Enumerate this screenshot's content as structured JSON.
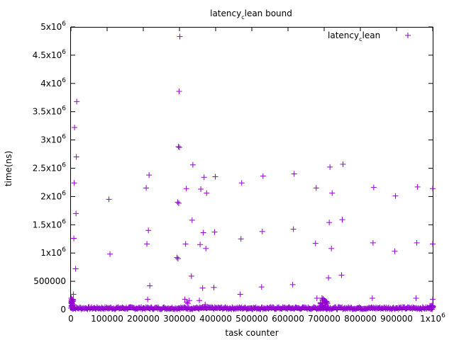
{
  "chart_data": {
    "type": "scatter",
    "title": "latency_clean bound",
    "xlabel": "task counter",
    "ylabel": "time(ns)",
    "xlim": [
      0,
      1000000
    ],
    "ylim": [
      0,
      5000000
    ],
    "legend_position": "top-right",
    "grid": false,
    "series": [
      {
        "name": "latency_clean",
        "color": "#9400d3",
        "marker": "plus",
        "points": [
          [
            1000,
            200000
          ],
          [
            2000,
            160000
          ],
          [
            3000,
            130000
          ],
          [
            4000,
            100000
          ],
          [
            5000,
            80000
          ],
          [
            7000,
            270000
          ],
          [
            8000,
            1260000
          ],
          [
            9000,
            2240000
          ],
          [
            10000,
            3220000
          ],
          [
            13000,
            720000
          ],
          [
            14000,
            1700000
          ],
          [
            15000,
            2700000
          ],
          [
            16000,
            3680000
          ],
          [
            105000,
            1950000
          ],
          [
            108000,
            980000
          ],
          [
            208000,
            2150000
          ],
          [
            210000,
            1160000
          ],
          [
            212000,
            180000
          ],
          [
            214000,
            1400000
          ],
          [
            216000,
            2380000
          ],
          [
            218000,
            420000
          ],
          [
            293000,
            920000
          ],
          [
            295000,
            1900000
          ],
          [
            297000,
            2880000
          ],
          [
            299000,
            3860000
          ],
          [
            301000,
            4830000
          ],
          [
            296000,
            900000
          ],
          [
            298000,
            1880000
          ],
          [
            300000,
            2870000
          ],
          [
            315000,
            180000
          ],
          [
            317000,
            1160000
          ],
          [
            319000,
            2140000
          ],
          [
            320000,
            130000
          ],
          [
            323000,
            110000
          ],
          [
            327000,
            160000
          ],
          [
            333000,
            590000
          ],
          [
            335000,
            1580000
          ],
          [
            337000,
            2560000
          ],
          [
            355000,
            160000
          ],
          [
            357000,
            1150000
          ],
          [
            359000,
            2130000
          ],
          [
            364000,
            380000
          ],
          [
            366000,
            1360000
          ],
          [
            368000,
            2340000
          ],
          [
            371000,
            90000
          ],
          [
            373000,
            1080000
          ],
          [
            375000,
            2060000
          ],
          [
            395000,
            390000
          ],
          [
            397000,
            1370000
          ],
          [
            399000,
            2350000
          ],
          [
            468000,
            270000
          ],
          [
            470000,
            1250000
          ],
          [
            472000,
            2240000
          ],
          [
            527000,
            400000
          ],
          [
            529000,
            1380000
          ],
          [
            531000,
            2360000
          ],
          [
            613000,
            440000
          ],
          [
            615000,
            1420000
          ],
          [
            617000,
            2400000
          ],
          [
            676000,
            1170000
          ],
          [
            678000,
            2150000
          ],
          [
            680000,
            200000
          ],
          [
            694000,
            200000
          ],
          [
            697000,
            190000
          ],
          [
            700000,
            170000
          ],
          [
            703000,
            150000
          ],
          [
            706000,
            130000
          ],
          [
            709000,
            110000
          ],
          [
            712000,
            560000
          ],
          [
            714000,
            1540000
          ],
          [
            716000,
            2520000
          ],
          [
            720000,
            1080000
          ],
          [
            722000,
            2060000
          ],
          [
            748000,
            610000
          ],
          [
            750000,
            1590000
          ],
          [
            752000,
            2570000
          ],
          [
            833000,
            200000
          ],
          [
            835000,
            1180000
          ],
          [
            837000,
            2160000
          ],
          [
            895000,
            1030000
          ],
          [
            897000,
            2010000
          ],
          [
            954000,
            200000
          ],
          [
            956000,
            1180000
          ],
          [
            958000,
            2170000
          ],
          [
            1000000,
            180000
          ],
          [
            1002000,
            1160000
          ],
          [
            1004000,
            2140000
          ]
        ]
      }
    ],
    "yticks": [
      {
        "value": 0,
        "label": "0"
      },
      {
        "value": 500000,
        "label": "500000"
      },
      {
        "value": 1000000,
        "label": "1x10^6"
      },
      {
        "value": 1500000,
        "label": "1.5x10^6"
      },
      {
        "value": 2000000,
        "label": "2x10^6"
      },
      {
        "value": 2500000,
        "label": "2.5x10^6"
      },
      {
        "value": 3000000,
        "label": "3x10^6"
      },
      {
        "value": 3500000,
        "label": "3.5x10^6"
      },
      {
        "value": 4000000,
        "label": "4x10^6"
      },
      {
        "value": 4500000,
        "label": "4.5x10^6"
      },
      {
        "value": 5000000,
        "label": "5x10^6"
      }
    ],
    "xticks": [
      {
        "value": 0,
        "label": "0"
      },
      {
        "value": 100000,
        "label": "100000"
      },
      {
        "value": 200000,
        "label": "200000"
      },
      {
        "value": 300000,
        "label": "300000"
      },
      {
        "value": 400000,
        "label": "400000"
      },
      {
        "value": 500000,
        "label": "500000"
      },
      {
        "value": 600000,
        "label": "600000"
      },
      {
        "value": 700000,
        "label": "700000"
      },
      {
        "value": 800000,
        "label": "800000"
      },
      {
        "value": 900000,
        "label": "900000"
      },
      {
        "value": 1000000,
        "label": "1x10^6"
      }
    ]
  }
}
